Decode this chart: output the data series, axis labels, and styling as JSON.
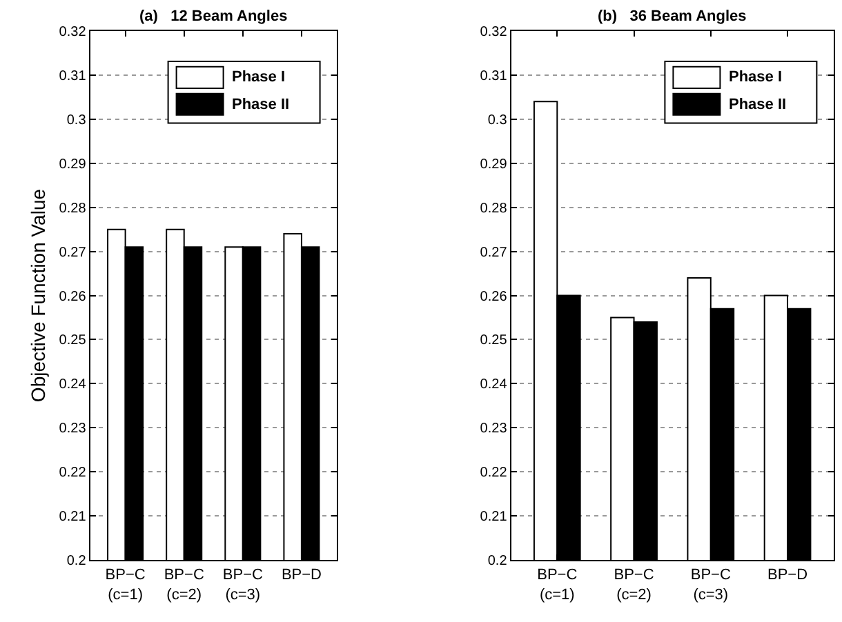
{
  "chart_data": [
    {
      "type": "bar",
      "title": "(a)   12 Beam Angles",
      "ylabel": "Objective Function Value",
      "categories": [
        "BP−C\n(c=1)",
        "BP−C\n(c=2)",
        "BP−C\n(c=3)",
        "BP−D"
      ],
      "series": [
        {
          "name": "Phase I",
          "color": "#ffffff",
          "values": [
            0.275,
            0.275,
            0.271,
            0.274
          ]
        },
        {
          "name": "Phase II",
          "color": "#000000",
          "values": [
            0.271,
            0.271,
            0.271,
            0.271
          ]
        }
      ],
      "ylim": [
        0.2,
        0.32
      ],
      "yticks": [
        0.2,
        0.21,
        0.22,
        0.23,
        0.24,
        0.25,
        0.26,
        0.27,
        0.28,
        0.29,
        0.3,
        0.31,
        0.32
      ],
      "grid": "y",
      "legend": "top right"
    },
    {
      "type": "bar",
      "title": "(b)   36 Beam Angles",
      "categories": [
        "BP−C\n(c=1)",
        "BP−C\n(c=2)",
        "BP−C\n(c=3)",
        "BP−D"
      ],
      "series": [
        {
          "name": "Phase I",
          "color": "#ffffff",
          "values": [
            0.304,
            0.255,
            0.264,
            0.26
          ]
        },
        {
          "name": "Phase II",
          "color": "#000000",
          "values": [
            0.26,
            0.254,
            0.257,
            0.257
          ]
        }
      ],
      "ylim": [
        0.2,
        0.32
      ],
      "yticks": [
        0.2,
        0.21,
        0.22,
        0.23,
        0.24,
        0.25,
        0.26,
        0.27,
        0.28,
        0.29,
        0.3,
        0.31,
        0.32
      ],
      "grid": "y",
      "legend": "top right"
    }
  ]
}
